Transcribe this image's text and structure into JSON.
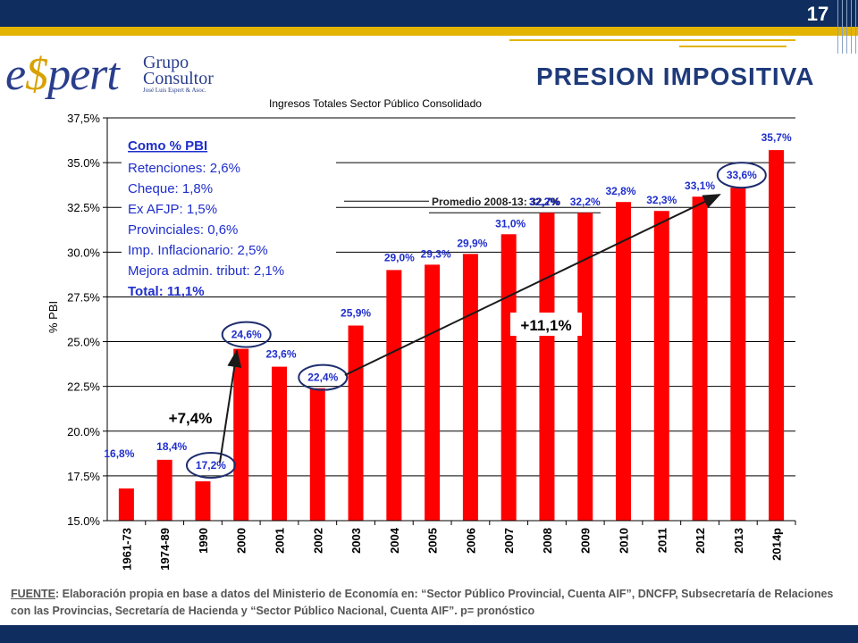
{
  "page_number": "17",
  "logo": {
    "brand_pre": "e",
    "brand_s": "$",
    "brand_post": "pert",
    "line1": "Grupo",
    "line2": "Consultor",
    "line3": "José Luis Espert & Asoc."
  },
  "slide_title": "PRESION IMPOSITIVA",
  "source": {
    "label": "FUENTE",
    "text": ": Elaboración propia en base a datos del Ministerio de Economía en: “Sector Público Provincial, Cuenta AIF”, DNCFP, Subsecretaría de Relaciones con las Provincias, Secretaría de Hacienda y “Sector Público Nacional, Cuenta AIF”.   p= pronóstico"
  },
  "chart_data": {
    "type": "bar",
    "title": "Ingresos Totales Sector Público Consolidado",
    "ylabel": "% PBI",
    "xlabel": "",
    "ylim": [
      15.0,
      37.5
    ],
    "yticks": [
      "15.0%",
      "17.5%",
      "20.0%",
      "22.5%",
      "25.0%",
      "27.5%",
      "30.0%",
      "32.5%",
      "35.0%",
      "37,5%"
    ],
    "ytick_values": [
      15.0,
      17.5,
      20.0,
      22.5,
      25.0,
      27.5,
      30.0,
      32.5,
      35.0,
      37.5
    ],
    "grid": true,
    "bar_color": "#ff0000",
    "categories": [
      "1961-73",
      "1974-89",
      "1990",
      "2000",
      "2001",
      "2002",
      "2003",
      "2004",
      "2005",
      "2006",
      "2007",
      "2008",
      "2009",
      "2010",
      "2011",
      "2012",
      "2013",
      "2014p"
    ],
    "values": [
      16.8,
      18.4,
      17.2,
      24.6,
      23.6,
      22.4,
      25.9,
      29.0,
      29.3,
      29.9,
      31.0,
      32.2,
      32.2,
      32.8,
      32.3,
      33.1,
      33.6,
      35.7
    ],
    "data_labels": [
      "16,8%",
      "18,4%",
      "17,2%",
      "24,6%",
      "23,6%",
      "22,4%",
      "25,9%",
      "29,0%",
      "29,3%",
      "29,9%",
      "31,0%",
      "32,2%",
      "32,2%",
      "32,8%",
      "32,3%",
      "33,1%",
      "33,6%",
      "35,7%"
    ],
    "circled": [
      "1990",
      "2000",
      "2002",
      "2013"
    ],
    "average_note": "Promedio 2008-13: 32,7%",
    "average_value": 32.7,
    "annotations": {
      "increase_1": "+7,4%",
      "increase_2": "+11,1%"
    },
    "legend_box": {
      "heading": "Como % PBI",
      "items": [
        "Retenciones: 2,6%",
        "Cheque: 1,8%",
        "Ex AFJP: 1,5%",
        "Provinciales: 0,6%",
        "Imp. Inflacionario: 2,5%",
        "Mejora admin. tribut: 2,1%"
      ],
      "total": "Total: 11,1%"
    },
    "colors": {
      "text_blue": "#1f2ecc",
      "label_blue": "#1f2ecc",
      "circle": "#1f2e6e"
    }
  }
}
